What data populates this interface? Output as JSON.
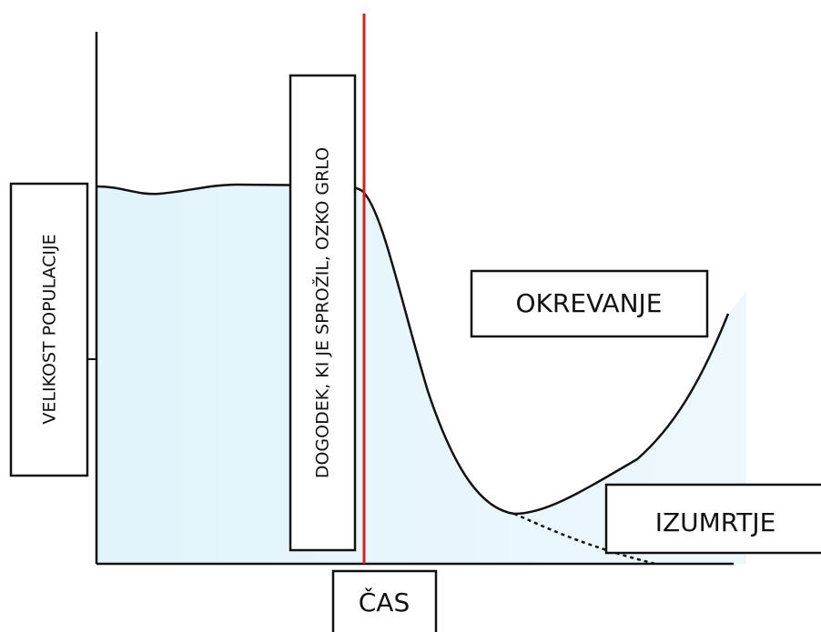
{
  "y_axis_label": "VELIKOST POPULACIJE",
  "event_label": "DOGODEK, KI JE SPROŽIL, OZKO GRLO",
  "recovery_label": "OKREVANJE",
  "extinction_label": "IZUMRTJE",
  "x_axis_label": "ČAS"
}
